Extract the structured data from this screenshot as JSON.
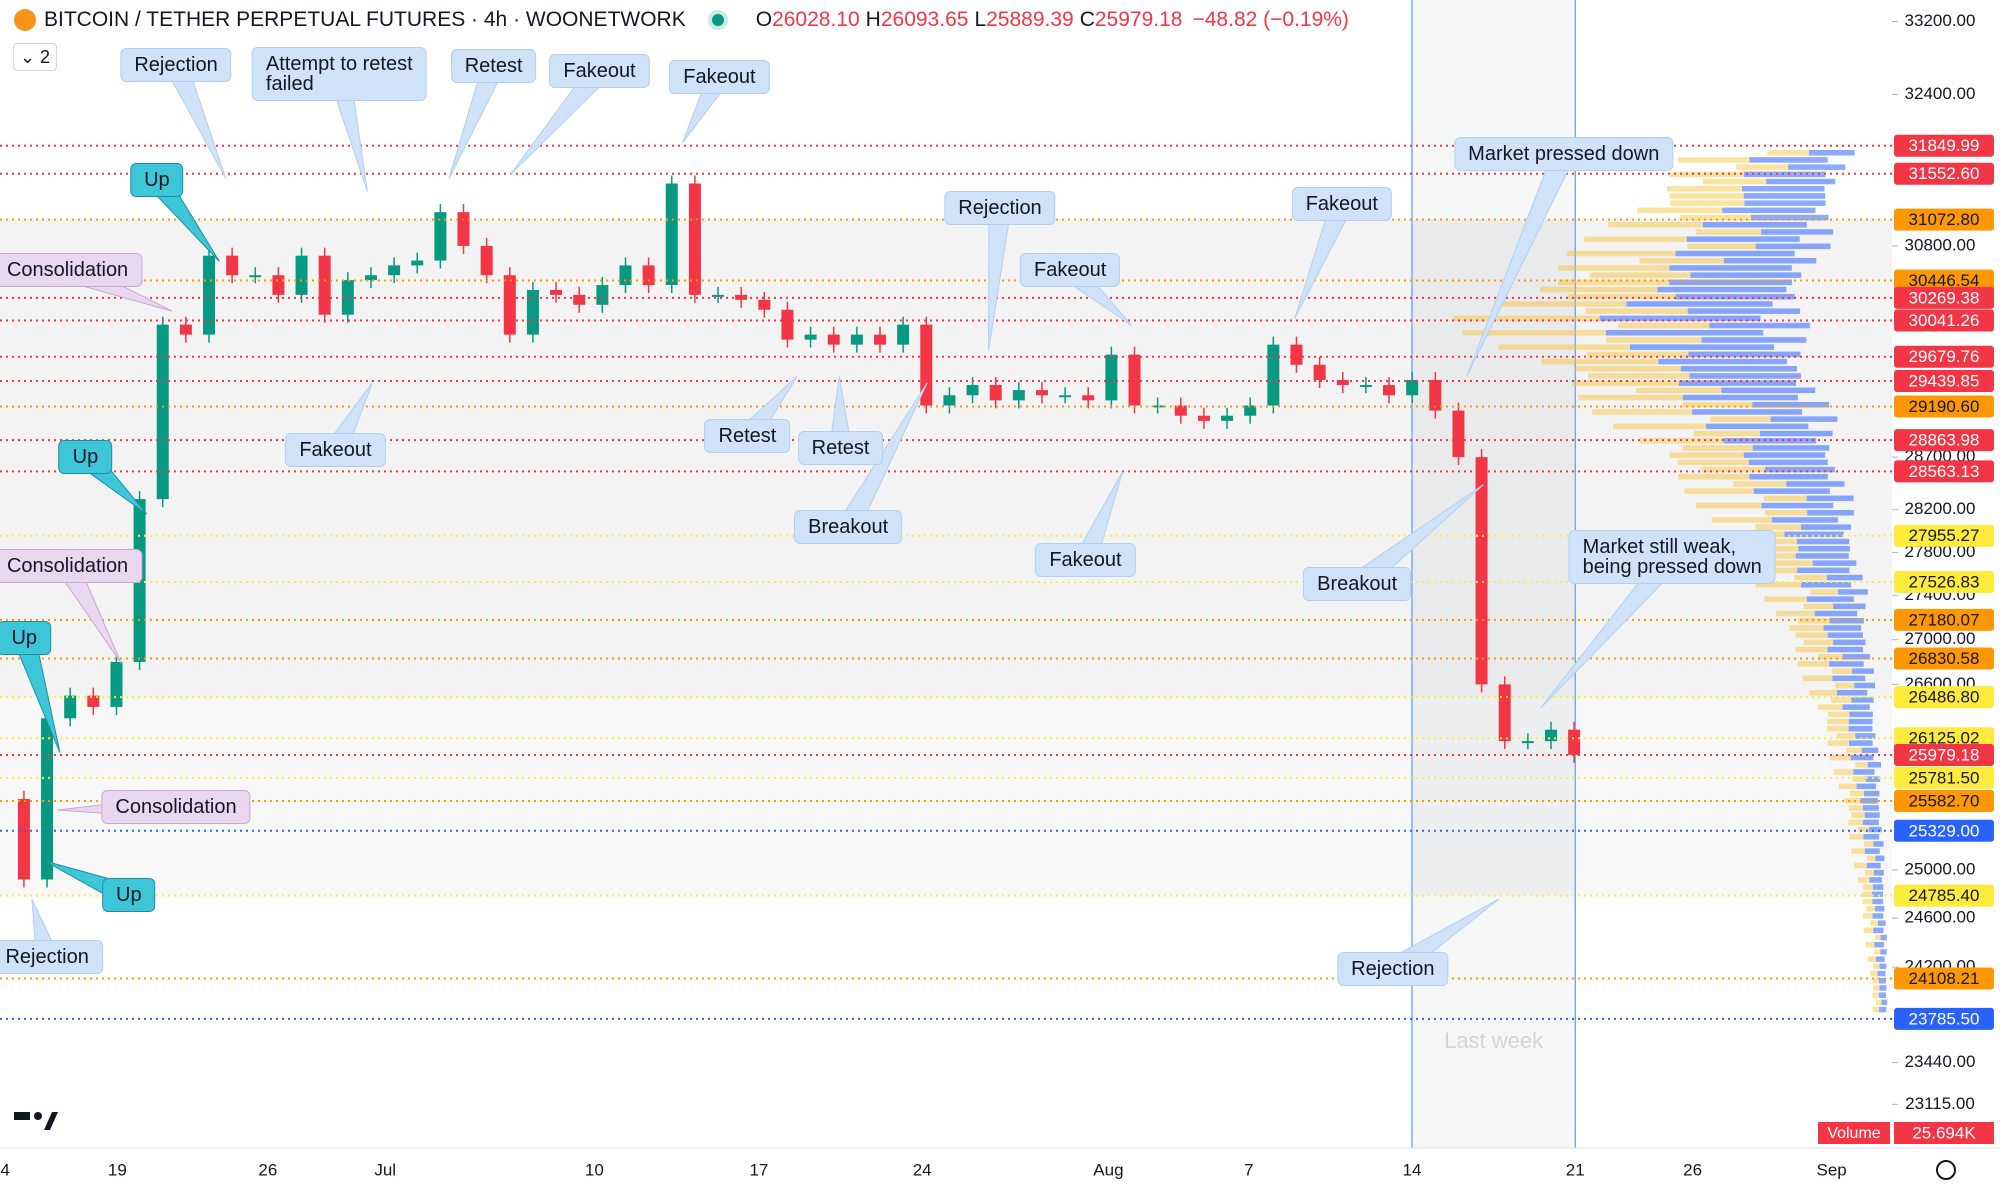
{
  "header": {
    "symbol": "BITCOIN / TETHER PERPETUAL FUTURES · 4h · WOONETWORK",
    "ohlc": [
      {
        "key": "O",
        "value": "26028.10"
      },
      {
        "key": "H",
        "value": "26093.65"
      },
      {
        "key": "L",
        "value": "25889.39"
      },
      {
        "key": "C",
        "value": "25979.18"
      }
    ],
    "change": "−48.82 (−0.19%)",
    "indicators": "2"
  },
  "chart": {
    "price_scale": {
      "log": true,
      "range": [
        22780,
        33440
      ],
      "ticks": [
        {
          "value": 33200,
          "label": "33200.00"
        },
        {
          "value": 32400,
          "label": "32400.00"
        },
        {
          "value": 30800,
          "label": "30800.00"
        },
        {
          "value": 28700,
          "label": "28700.00"
        },
        {
          "value": 28200,
          "label": "28200.00"
        },
        {
          "value": 27800,
          "label": "27800.00"
        },
        {
          "value": 27400,
          "label": "27400.00"
        },
        {
          "value": 27000,
          "label": "27000.00"
        },
        {
          "value": 26600,
          "label": "26600.00"
        },
        {
          "value": 25000,
          "label": "25000.00"
        },
        {
          "value": 24600,
          "label": "24600.00"
        },
        {
          "value": 24200,
          "label": "24200.00"
        },
        {
          "value": 23440,
          "label": "23440.00"
        },
        {
          "value": 23115,
          "label": "23115.00"
        }
      ]
    },
    "price_path": [
      25600,
      24920,
      26300,
      26500,
      26400,
      26800,
      28300,
      30000,
      29900,
      30700,
      30500,
      30500,
      30300,
      30700,
      30100,
      30450,
      30500,
      30600,
      30650,
      31150,
      30800,
      30500,
      29900,
      30350,
      30300,
      30200,
      30400,
      30600,
      30400,
      31450,
      30300,
      30300,
      30250,
      30150,
      29850,
      29900,
      29800,
      29900,
      29800,
      30000,
      29200,
      29300,
      29400,
      29250,
      29350,
      29300,
      29300,
      29250,
      29700,
      29200,
      29200,
      29100,
      29050,
      29100,
      29200,
      29800,
      29600,
      29450,
      29400,
      29400,
      29300,
      29450,
      29150,
      28700,
      26600,
      26100,
      26100,
      26200,
      25980
    ],
    "levels": [
      {
        "value": 31849.99,
        "label": "31849.99",
        "color": "#f23645"
      },
      {
        "value": 31552.6,
        "label": "31552.60",
        "color": "#f23645"
      },
      {
        "value": 31072.8,
        "label": "31072.80",
        "color": "#ff9800"
      },
      {
        "value": 30446.54,
        "label": "30446.54",
        "color": "#ff9800"
      },
      {
        "value": 30269.38,
        "label": "30269.38",
        "color": "#f23645"
      },
      {
        "value": 30041.26,
        "label": "30041.26",
        "color": "#f23645"
      },
      {
        "value": 29679.76,
        "label": "29679.76",
        "color": "#f23645"
      },
      {
        "value": 29439.85,
        "label": "29439.85",
        "color": "#f23645"
      },
      {
        "value": 29190.6,
        "label": "29190.60",
        "color": "#ff9800"
      },
      {
        "value": 28863.98,
        "label": "28863.98",
        "color": "#f23645"
      },
      {
        "value": 28563.13,
        "label": "28563.13",
        "color": "#f23645"
      },
      {
        "value": 27955.27,
        "label": "27955.27",
        "color": "#ffeb3b"
      },
      {
        "value": 27526.83,
        "label": "27526.83",
        "color": "#ffeb3b"
      },
      {
        "value": 27180.07,
        "label": "27180.07",
        "color": "#ff9800"
      },
      {
        "value": 26830.58,
        "label": "26830.58",
        "color": "#ff9800"
      },
      {
        "value": 26486.8,
        "label": "26486.80",
        "color": "#ffeb3b"
      },
      {
        "value": 26125.02,
        "label": "26125.02",
        "color": "#ffeb3b"
      },
      {
        "value": 25979.18,
        "label": "25979.18",
        "color": "#f23645"
      },
      {
        "value": 25781.5,
        "label": "25781.50",
        "color": "#ffeb3b"
      },
      {
        "value": 25582.7,
        "label": "25582.70",
        "color": "#ff9800"
      },
      {
        "value": 25329,
        "label": "25329.00",
        "color": "#2962ff"
      },
      {
        "value": 24785.4,
        "label": "24785.40",
        "color": "#ffeb3b"
      },
      {
        "value": 24108.21,
        "label": "24108.21",
        "color": "#ff9800"
      },
      {
        "value": 23785.5,
        "label": "23785.50",
        "color": "#2962ff"
      }
    ],
    "annotations": [
      {
        "text": [
          "Rejection"
        ],
        "style": "callout"
      },
      {
        "text": [
          "Attempt to retest",
          "failed"
        ],
        "style": "callout"
      },
      {
        "text": [
          "Retest"
        ],
        "style": "callout"
      },
      {
        "text": [
          "Fakeout"
        ],
        "style": "callout"
      },
      {
        "text": [
          "Fakeout"
        ],
        "style": "callout"
      },
      {
        "text": [
          "Up"
        ],
        "style": "up"
      },
      {
        "text": [
          "Consolidation"
        ],
        "style": "consolidation"
      },
      {
        "text": [
          "Rejection"
        ],
        "style": "callout"
      },
      {
        "text": [
          "Fakeout"
        ],
        "style": "callout"
      },
      {
        "text": [
          "Fakeout"
        ],
        "style": "callout"
      },
      {
        "text": [
          "Market pressed down"
        ],
        "style": "callout"
      },
      {
        "text": [
          "Fakeout"
        ],
        "style": "callout"
      },
      {
        "text": [
          "Up"
        ],
        "style": "up"
      },
      {
        "text": [
          "Consolidation"
        ],
        "style": "consolidation"
      },
      {
        "text": [
          "Up"
        ],
        "style": "up"
      },
      {
        "text": [
          "Consolidation"
        ],
        "style": "consolidation"
      },
      {
        "text": [
          "Up"
        ],
        "style": "up"
      },
      {
        "text": [
          "Rejection"
        ],
        "style": "callout"
      },
      {
        "text": [
          "Retest"
        ],
        "style": "callout"
      },
      {
        "text": [
          "Retest"
        ],
        "style": "callout"
      },
      {
        "text": [
          "Breakout"
        ],
        "style": "callout"
      },
      {
        "text": [
          "Fakeout"
        ],
        "style": "callout"
      },
      {
        "text": [
          "Breakout"
        ],
        "style": "callout"
      },
      {
        "text": [
          "Market still weak,",
          "being pressed down"
        ],
        "style": "callout"
      },
      {
        "text": [
          "Rejection"
        ],
        "style": "callout"
      }
    ],
    "x_labels": [
      "4",
      "19",
      "26",
      "Jul",
      "10",
      "17",
      "24",
      "Aug",
      "7",
      "14",
      "21",
      "26",
      "Sep"
    ],
    "watermark": "Last week",
    "volume": {
      "name": "Volume",
      "value": "25.694K"
    }
  }
}
